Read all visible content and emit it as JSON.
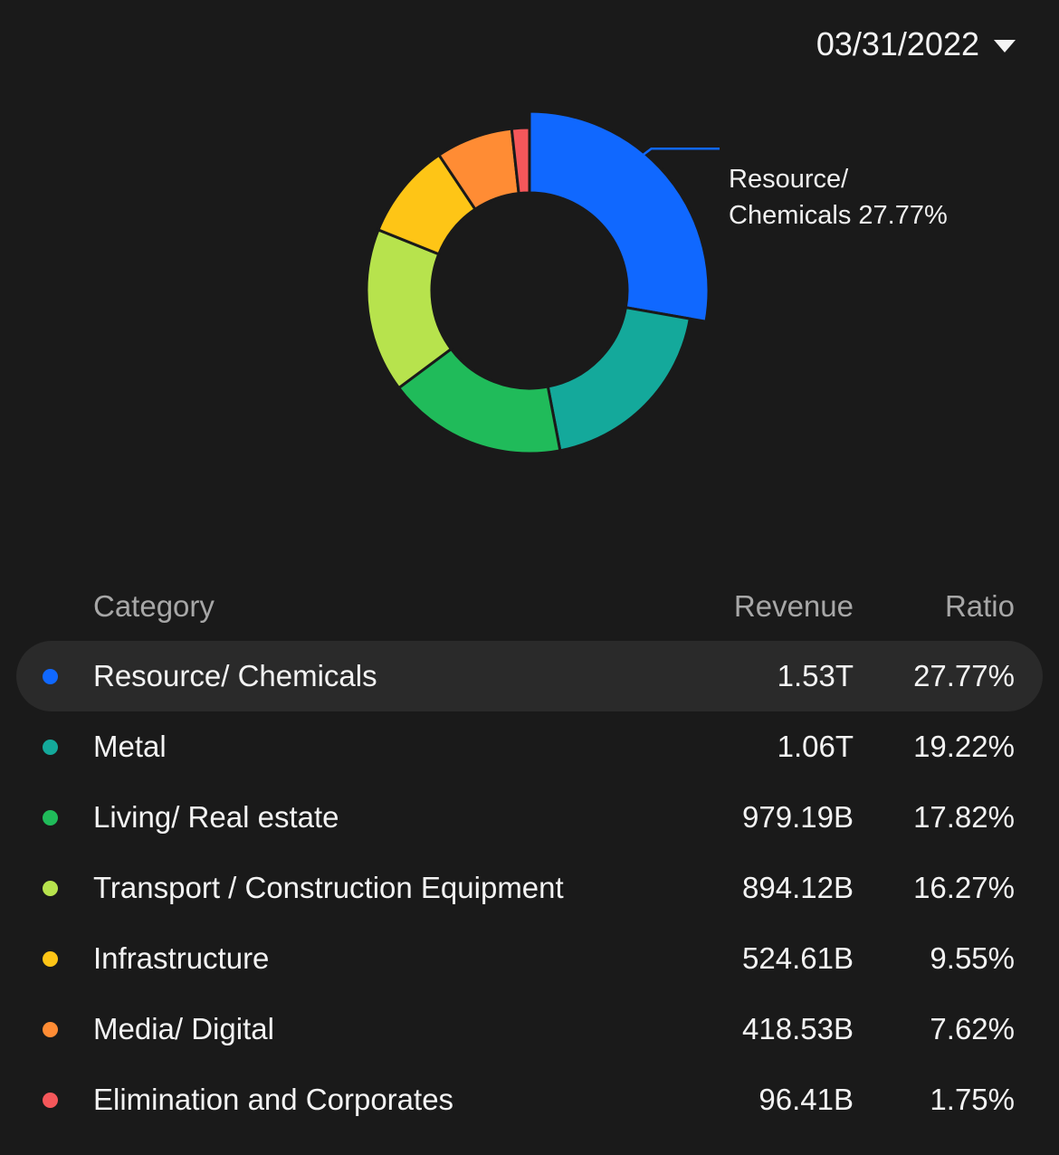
{
  "date_selector": {
    "value": "03/31/2022",
    "icon": "caret-down-icon"
  },
  "callout": {
    "line1": "Resource/",
    "line2": "Chemicals 27.77%",
    "color": "#1068ff"
  },
  "table": {
    "headers": {
      "category": "Category",
      "revenue": "Revenue",
      "ratio": "Ratio"
    },
    "rows": [
      {
        "category": "Resource/ Chemicals",
        "revenue": "1.53T",
        "ratio": "27.77%",
        "color": "#1068ff"
      },
      {
        "category": "Metal",
        "revenue": "1.06T",
        "ratio": "19.22%",
        "color": "#14a99b"
      },
      {
        "category": "Living/ Real estate",
        "revenue": "979.19B",
        "ratio": "17.82%",
        "color": "#20bb5a"
      },
      {
        "category": "Transport / Construction Equipment",
        "revenue": "894.12B",
        "ratio": "16.27%",
        "color": "#b7e34d"
      },
      {
        "category": "Infrastructure",
        "revenue": "524.61B",
        "ratio": "9.55%",
        "color": "#fec516"
      },
      {
        "category": "Media/ Digital",
        "revenue": "418.53B",
        "ratio": "7.62%",
        "color": "#ff8c34"
      },
      {
        "category": "Elimination and Corporates",
        "revenue": "96.41B",
        "ratio": "1.75%",
        "color": "#f5575a"
      }
    ]
  },
  "chart_data": {
    "type": "pie",
    "donut": true,
    "highlighted": "Resource/ Chemicals",
    "categories": [
      "Resource/ Chemicals",
      "Metal",
      "Living/ Real estate",
      "Transport / Construction Equipment",
      "Infrastructure",
      "Media/ Digital",
      "Elimination and Corporates"
    ],
    "values": [
      27.77,
      19.22,
      17.82,
      16.27,
      9.55,
      7.62,
      1.75
    ],
    "colors": [
      "#1068ff",
      "#14a99b",
      "#20bb5a",
      "#b7e34d",
      "#fec516",
      "#ff8c34",
      "#f5575a"
    ]
  }
}
